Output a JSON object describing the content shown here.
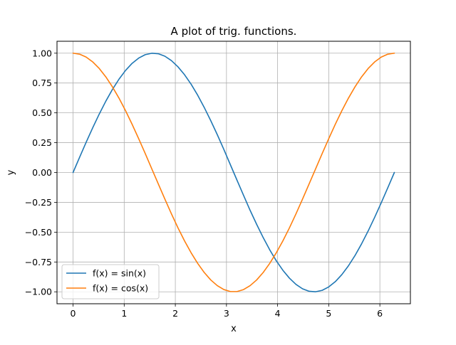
{
  "chart_data": {
    "type": "line",
    "title": "A plot of trig. functions.",
    "xlabel": "x",
    "ylabel": "y",
    "xlim": [
      -0.314,
      6.597
    ],
    "ylim": [
      -1.1,
      1.1
    ],
    "xticks": [
      0,
      1,
      2,
      3,
      4,
      5,
      6
    ],
    "xtick_labels": [
      "0",
      "1",
      "2",
      "3",
      "4",
      "5",
      "6"
    ],
    "yticks": [
      -1.0,
      -0.75,
      -0.5,
      -0.25,
      0.0,
      0.25,
      0.5,
      0.75,
      1.0
    ],
    "ytick_labels": [
      "−1.00",
      "−0.75",
      "−0.50",
      "−0.25",
      "0.00",
      "0.25",
      "0.50",
      "0.75",
      "1.00"
    ],
    "grid": true,
    "legend_position": "lower-left",
    "x": [
      0.0,
      0.1282,
      0.2565,
      0.3847,
      0.5129,
      0.6411,
      0.7694,
      0.8976,
      1.0258,
      1.1541,
      1.2823,
      1.4105,
      1.5387,
      1.667,
      1.7952,
      1.9234,
      2.0517,
      2.1799,
      2.3081,
      2.4363,
      2.5646,
      2.6928,
      2.821,
      2.9493,
      3.0775,
      3.2057,
      3.3339,
      3.4622,
      3.5904,
      3.7186,
      3.8468,
      3.9751,
      4.1033,
      4.2315,
      4.3598,
      4.488,
      4.6162,
      4.7444,
      4.8727,
      5.0009,
      5.1291,
      5.2574,
      5.3856,
      5.5138,
      5.642,
      5.7703,
      5.8985,
      6.0267,
      6.155,
      6.2832
    ],
    "series": [
      {
        "name": "f(x) = sin(x)",
        "color": "#1f77b4",
        "values": [
          0.0,
          0.1279,
          0.2537,
          0.3753,
          0.4907,
          0.5981,
          0.6959,
          0.7818,
          0.8551,
          0.9146,
          0.9587,
          0.9874,
          0.9995,
          0.9954,
          0.9749,
          0.9381,
          0.8858,
          0.8196,
          0.7403,
          0.6486,
          0.5459,
          0.4346,
          0.3169,
          0.1926,
          0.0641,
          -0.0641,
          -0.1913,
          -0.3169,
          -0.4346,
          -0.5459,
          -0.6486,
          -0.7403,
          -0.8196,
          -0.8858,
          -0.9381,
          -0.9749,
          -0.9954,
          -0.9995,
          -0.9874,
          -0.9587,
          -0.9146,
          -0.8551,
          -0.7818,
          -0.6959,
          -0.5981,
          -0.4907,
          -0.3753,
          -0.2537,
          -0.1279,
          0.0
        ]
      },
      {
        "name": "f(x) = cos(x)",
        "color": "#ff7f0e",
        "values": [
          1.0,
          0.9918,
          0.9673,
          0.9269,
          0.8713,
          0.8014,
          0.7182,
          0.6235,
          0.5186,
          0.4048,
          0.2845,
          0.1596,
          0.0319,
          -0.0957,
          -0.2225,
          -0.3461,
          -0.4639,
          -0.573,
          -0.6724,
          -0.7612,
          -0.8377,
          -0.9006,
          -0.9484,
          -0.9811,
          -0.9979,
          -0.9979,
          -0.9815,
          -0.9484,
          -0.9006,
          -0.8377,
          -0.7612,
          -0.6724,
          -0.573,
          -0.4639,
          -0.3461,
          -0.2225,
          -0.0957,
          0.0319,
          0.1596,
          0.2845,
          0.4048,
          0.5186,
          0.6235,
          0.7182,
          0.8014,
          0.8713,
          0.9269,
          0.9673,
          0.9918,
          1.0
        ]
      }
    ]
  }
}
